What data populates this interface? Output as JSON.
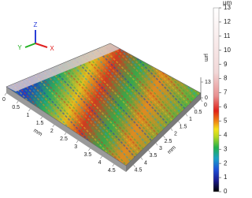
{
  "colorbar": {
    "unit": "µm",
    "ticks": [
      0,
      1,
      2,
      3,
      4,
      5,
      6,
      7,
      8,
      9,
      10,
      11,
      12,
      13
    ]
  },
  "x_axis": {
    "label": "mm",
    "ticks": [
      0,
      0.5,
      1,
      1.5,
      2,
      2.5,
      3,
      3.5,
      4,
      4.5
    ]
  },
  "y_axis": {
    "label": "mm",
    "ticks": [
      0,
      0.5,
      1,
      1.5,
      2,
      2.5,
      3,
      3.5,
      4,
      4.5
    ]
  },
  "z_axis": {
    "label": "µm",
    "ticks": [
      13,
      0
    ]
  },
  "triad": {
    "x": "X",
    "y": "Y",
    "z": "Z"
  }
}
